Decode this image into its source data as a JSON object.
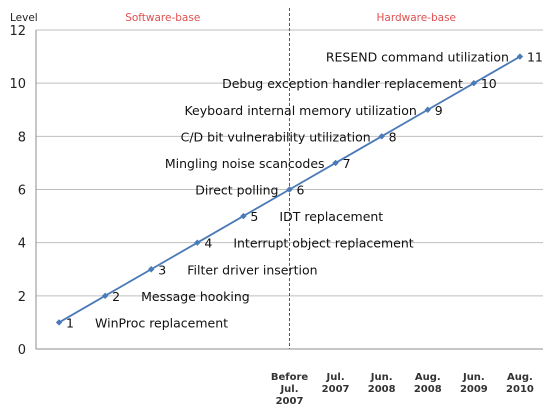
{
  "chart_data": {
    "type": "line",
    "ylabel": "Level",
    "ylim": [
      0,
      12
    ],
    "yticks": [
      0,
      2,
      4,
      6,
      8,
      10,
      12
    ],
    "grid": true,
    "x_ticks": [
      {
        "x": 6,
        "lines": [
          "Before",
          "Jul.",
          "2007"
        ]
      },
      {
        "x": 7,
        "lines": [
          "Jul.",
          "2007"
        ]
      },
      {
        "x": 8,
        "lines": [
          "Jun.",
          "2008"
        ]
      },
      {
        "x": 9,
        "lines": [
          "Aug.",
          "2008"
        ]
      },
      {
        "x": 10,
        "lines": [
          "Jun.",
          "2009"
        ]
      },
      {
        "x": 11,
        "lines": [
          "Aug.",
          "2010"
        ]
      }
    ],
    "divider_x": 6,
    "regions": {
      "left": {
        "label": "Software-base",
        "color": "#e05050"
      },
      "right": {
        "label": "Hardware-base",
        "color": "#e05050"
      }
    },
    "line_color": "#4a7ab8",
    "divider_color": "#cc2222",
    "series": [
      {
        "x": [
          1,
          2,
          3,
          4,
          5,
          6,
          7,
          8,
          9,
          10,
          11
        ],
        "values": [
          1,
          2,
          3,
          4,
          5,
          6,
          7,
          8,
          9,
          10,
          11
        ],
        "point_labels": [
          "1",
          "2",
          "3",
          "4",
          "5",
          "6",
          "7",
          "8",
          "9",
          "10",
          "11"
        ],
        "annotations": [
          "WinProc replacement",
          "Message hooking",
          "Filter driver insertion",
          "Interrupt object replacement",
          "IDT replacement",
          "Direct polling",
          "Mingling noise scancodes",
          "C/D bit vulnerability utilization",
          "Keyboard internal memory utilization",
          "Debug exception handler replacement",
          "RESEND command utilization"
        ]
      }
    ]
  }
}
